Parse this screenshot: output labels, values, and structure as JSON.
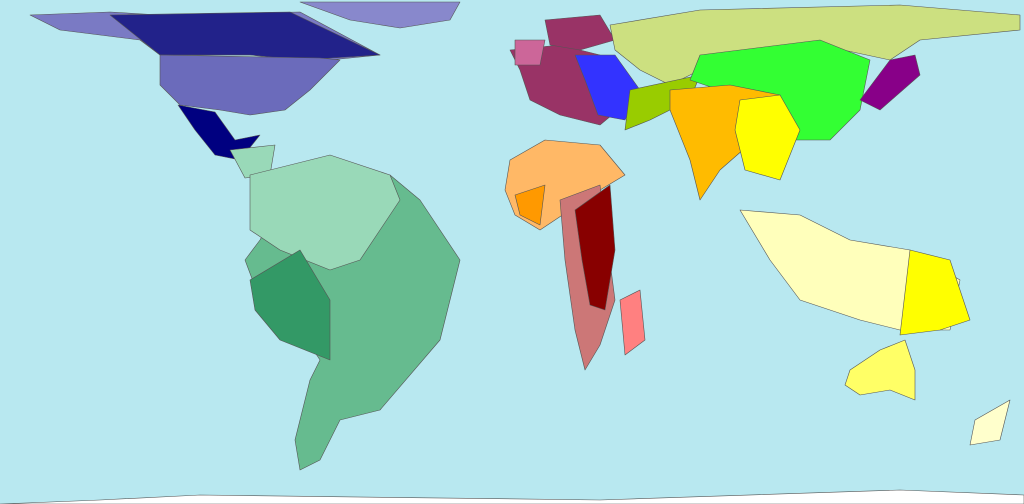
{
  "map": {
    "type": "cartogram world map",
    "ocean_color": "#b8e8f0",
    "region_colors": {
      "alaska_canada_west": "#7a7ac4",
      "canada_north": "#22228a",
      "greenland": "#8888cc",
      "usa": "#6b6bbb",
      "mexico": "#000080",
      "central_america": "#99d9b8",
      "south_america_north": "#99d9b8",
      "south_america_main": "#66bb8f",
      "south_america_andes": "#339966",
      "africa_north_west": "#ffb866",
      "africa_west_coast": "#ff9900",
      "africa_east_south": "#880000",
      "africa_south_tip": "#cc7777",
      "madagascar": "#ff8080",
      "scandinavia": "#993366",
      "uk": "#cc6699",
      "europe_west": "#993366",
      "europe_east": "#3333ff",
      "russia": "#cce080",
      "middle_east": "#99cc00",
      "china": "#33ff33",
      "japan": "#880088",
      "india": "#ffbb00",
      "southeast_asia": "#ffff00",
      "indonesia": "#ffffbb",
      "papua": "#ffff00",
      "australia": "#ffff66",
      "new_zealand": "#ffffcc",
      "antarctica": "#ffffff"
    }
  }
}
